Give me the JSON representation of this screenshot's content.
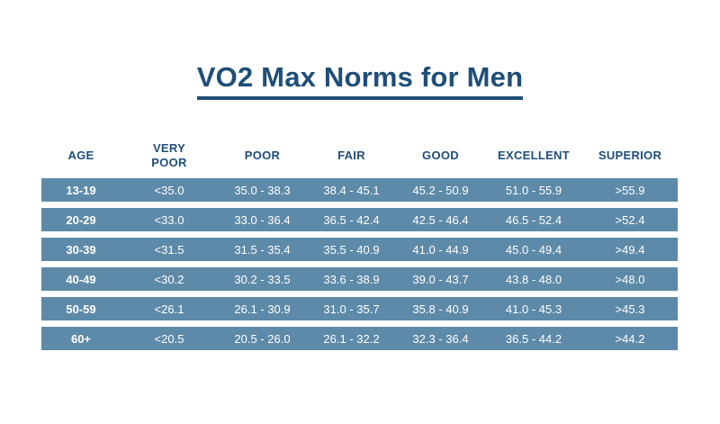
{
  "title": "VO2 Max Norms for Men",
  "headers": [
    "AGE",
    "VERY\nPOOR",
    "POOR",
    "FAIR",
    "GOOD",
    "EXCELLENT",
    "SUPERIOR"
  ],
  "rows": [
    [
      "13-19",
      "<35.0",
      "35.0 - 38.3",
      "38.4 - 45.1",
      "45.2 - 50.9",
      "51.0 - 55.9",
      ">55.9"
    ],
    [
      "20-29",
      "<33.0",
      "33.0 - 36.4",
      "36.5 - 42.4",
      "42.5 - 46.4",
      "46.5 - 52.4",
      ">52.4"
    ],
    [
      "30-39",
      "<31.5",
      "31.5 - 35.4",
      "35.5 - 40.9",
      "41.0 - 44.9",
      "45.0 - 49.4",
      ">49.4"
    ],
    [
      "40-49",
      "<30.2",
      "30.2 - 33.5",
      "33.6 - 38.9",
      "39.0 - 43.7",
      "43.8 - 48.0",
      ">48.0"
    ],
    [
      "50-59",
      "<26.1",
      "26.1 - 30.9",
      "31.0 - 35.7",
      "35.8 - 40.9",
      "41.0 - 45.3",
      ">45.3"
    ],
    [
      "60+",
      "<20.5",
      "20.5 - 26.0",
      "26.1 - 32.2",
      "32.3 - 36.4",
      "36.5 - 44.2",
      ">44.2"
    ]
  ],
  "colors": {
    "title": "#1f4e79",
    "header_text": "#1f4e79",
    "row_background": "#5d8aa8",
    "row_text": "#ffffff"
  }
}
